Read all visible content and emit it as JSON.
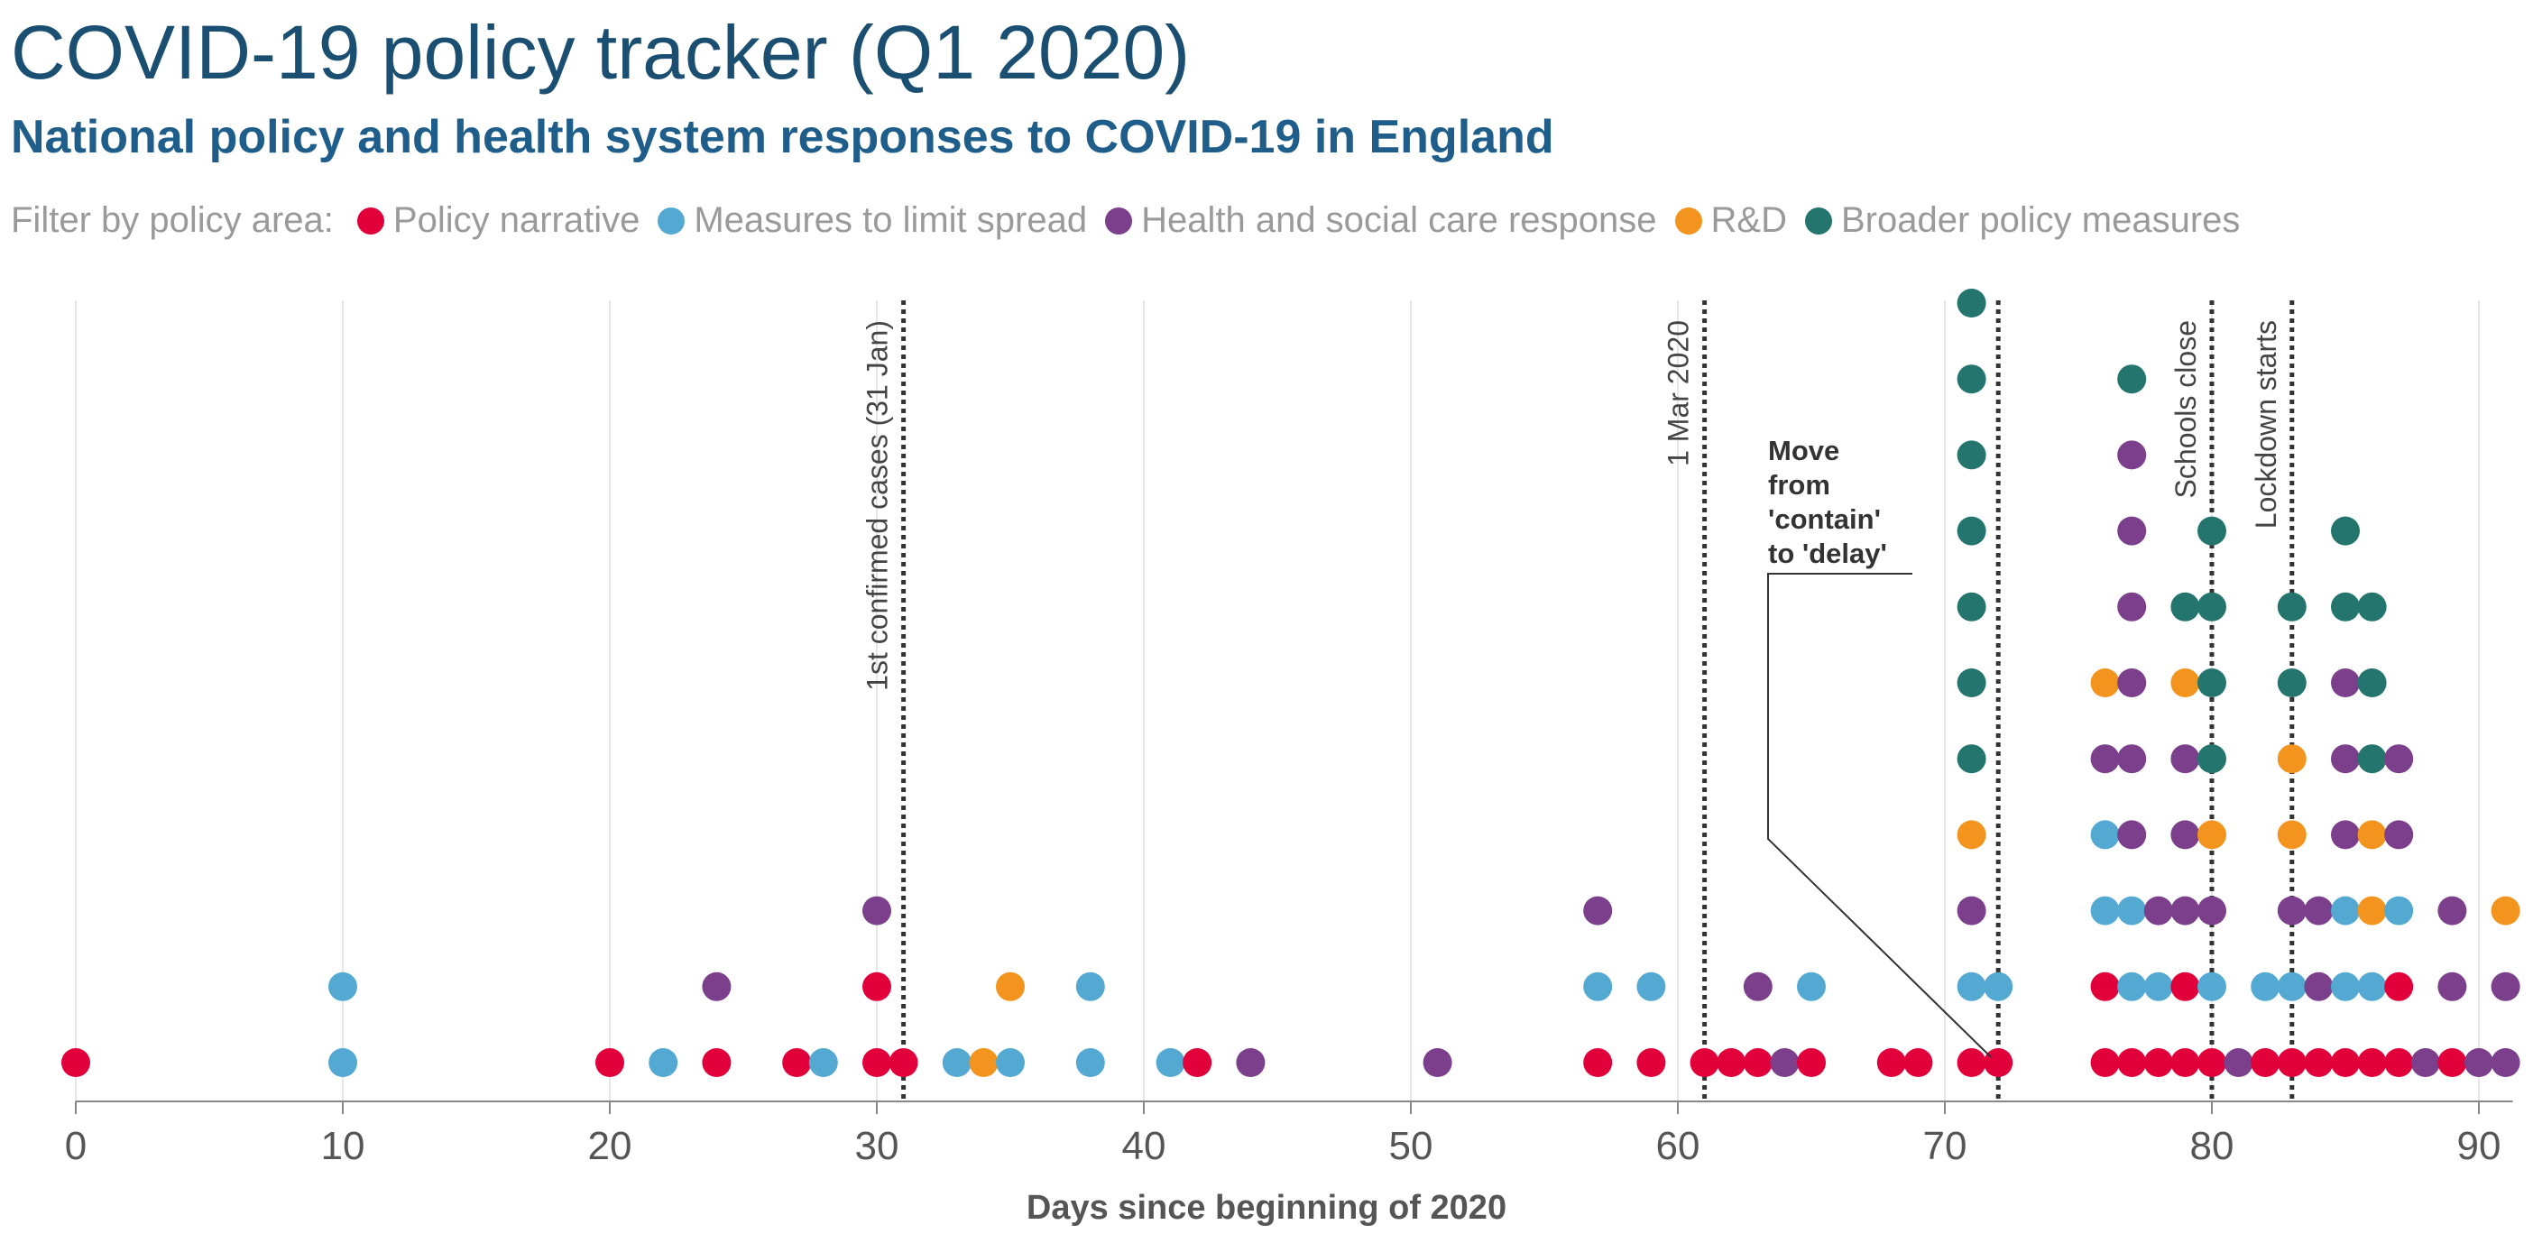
{
  "title": "COVID-19 policy tracker (Q1 2020)",
  "subtitle": "National policy and health system responses to COVID-19 in England",
  "legend": {
    "label": "Filter by policy area:",
    "items": [
      {
        "name": "Policy narrative",
        "color": "#e2003a"
      },
      {
        "name": "Measures to limit spread",
        "color": "#54a9d3"
      },
      {
        "name": "Health and social care response",
        "color": "#7b3f8b"
      },
      {
        "name": "R&D",
        "color": "#f2941d"
      },
      {
        "name": "Broader policy measures",
        "color": "#25756f"
      }
    ]
  },
  "chart_data": {
    "type": "scatter",
    "subtype": "stacked dot plot",
    "xlabel": "Days since beginning of 2020",
    "ylabel": "",
    "xlim": [
      0,
      91
    ],
    "xticks": [
      0,
      10,
      20,
      30,
      40,
      50,
      60,
      70,
      80,
      90
    ],
    "grid": "vertical",
    "legend_position": "top",
    "columns": [
      {
        "x": 0,
        "stack": [
          "Policy narrative"
        ]
      },
      {
        "x": 10,
        "stack": [
          "Measures to limit spread",
          "Measures to limit spread"
        ]
      },
      {
        "x": 20,
        "stack": [
          "Policy narrative"
        ]
      },
      {
        "x": 22,
        "stack": [
          "Measures to limit spread"
        ]
      },
      {
        "x": 24,
        "stack": [
          "Policy narrative",
          "Health and social care response"
        ]
      },
      {
        "x": 27,
        "stack": [
          "Policy narrative"
        ]
      },
      {
        "x": 28,
        "stack": [
          "Measures to limit spread"
        ]
      },
      {
        "x": 30,
        "stack": [
          "Policy narrative",
          "Policy narrative",
          "Health and social care response"
        ]
      },
      {
        "x": 31,
        "stack": [
          "Policy narrative"
        ]
      },
      {
        "x": 33,
        "stack": [
          "Measures to limit spread"
        ]
      },
      {
        "x": 34,
        "stack": [
          "R&D"
        ]
      },
      {
        "x": 35,
        "stack": [
          "Measures to limit spread",
          "R&D"
        ]
      },
      {
        "x": 38,
        "stack": [
          "Measures to limit spread",
          "Measures to limit spread"
        ]
      },
      {
        "x": 41,
        "stack": [
          "Measures to limit spread"
        ]
      },
      {
        "x": 42,
        "stack": [
          "Policy narrative"
        ]
      },
      {
        "x": 44,
        "stack": [
          "Health and social care response"
        ]
      },
      {
        "x": 51,
        "stack": [
          "Health and social care response"
        ]
      },
      {
        "x": 57,
        "stack": [
          "Policy narrative",
          "Measures to limit spread",
          "Health and social care response"
        ]
      },
      {
        "x": 59,
        "stack": [
          "Policy narrative",
          "Measures to limit spread"
        ]
      },
      {
        "x": 61,
        "stack": [
          "Policy narrative"
        ]
      },
      {
        "x": 62,
        "stack": [
          "Policy narrative"
        ]
      },
      {
        "x": 63,
        "stack": [
          "Policy narrative",
          "Health and social care response"
        ]
      },
      {
        "x": 64,
        "stack": [
          "Health and social care response"
        ]
      },
      {
        "x": 65,
        "stack": [
          "Policy narrative",
          "Measures to limit spread"
        ]
      },
      {
        "x": 68,
        "stack": [
          "Policy narrative"
        ]
      },
      {
        "x": 69,
        "stack": [
          "Policy narrative"
        ]
      },
      {
        "x": 71,
        "stack": [
          "Policy narrative",
          "Measures to limit spread",
          "Health and social care response",
          "R&D",
          "Broader policy measures",
          "Broader policy measures",
          "Broader policy measures",
          "Broader policy measures",
          "Broader policy measures",
          "Broader policy measures",
          "Broader policy measures"
        ]
      },
      {
        "x": 72,
        "stack": [
          "Policy narrative",
          "Measures to limit spread"
        ]
      },
      {
        "x": 76,
        "stack": [
          "Policy narrative",
          "Policy narrative",
          "Measures to limit spread",
          "Measures to limit spread",
          "Health and social care response",
          "R&D"
        ]
      },
      {
        "x": 77,
        "stack": [
          "Policy narrative",
          "Measures to limit spread",
          "Measures to limit spread",
          "Health and social care response",
          "Health and social care response",
          "Health and social care response",
          "Health and social care response",
          "Health and social care response",
          "Health and social care response",
          "Broader policy measures"
        ]
      },
      {
        "x": 78,
        "stack": [
          "Policy narrative",
          "Measures to limit spread",
          "Health and social care response"
        ]
      },
      {
        "x": 79,
        "stack": [
          "Policy narrative",
          "Policy narrative",
          "Health and social care response",
          "Health and social care response",
          "Health and social care response",
          "R&D",
          "Broader policy measures"
        ]
      },
      {
        "x": 80,
        "stack": [
          "Policy narrative",
          "Measures to limit spread",
          "Health and social care response",
          "R&D",
          "Broader policy measures",
          "Broader policy measures",
          "Broader policy measures",
          "Broader policy measures"
        ]
      },
      {
        "x": 81,
        "stack": [
          "Health and social care response"
        ]
      },
      {
        "x": 82,
        "stack": [
          "Policy narrative",
          "Measures to limit spread"
        ]
      },
      {
        "x": 83,
        "stack": [
          "Policy narrative",
          "Measures to limit spread",
          "Health and social care response",
          "R&D",
          "R&D",
          "Broader policy measures",
          "Broader policy measures"
        ]
      },
      {
        "x": 84,
        "stack": [
          "Policy narrative",
          "Health and social care response",
          "Health and social care response"
        ]
      },
      {
        "x": 85,
        "stack": [
          "Policy narrative",
          "Measures to limit spread",
          "Measures to limit spread",
          "Health and social care response",
          "Health and social care response",
          "Health and social care response",
          "Broader policy measures",
          "Broader policy measures"
        ]
      },
      {
        "x": 86,
        "stack": [
          "Policy narrative",
          "Measures to limit spread",
          "R&D",
          "R&D",
          "Broader policy measures",
          "Broader policy measures",
          "Broader policy measures"
        ]
      },
      {
        "x": 87,
        "stack": [
          "Policy narrative",
          "Policy narrative",
          "Measures to limit spread",
          "Health and social care response",
          "Health and social care response"
        ]
      },
      {
        "x": 88,
        "stack": [
          "Health and social care response"
        ]
      },
      {
        "x": 89,
        "stack": [
          "Policy narrative",
          "Health and social care response",
          "Health and social care response"
        ]
      },
      {
        "x": 90,
        "stack": [
          "Health and social care response"
        ]
      },
      {
        "x": 91,
        "stack": [
          "Health and social care response",
          "Health and social care response",
          "R&D"
        ]
      }
    ],
    "reference_lines": [
      {
        "x": 31,
        "label": "1st confirmed cases (31 Jan)"
      },
      {
        "x": 61,
        "label": "1 Mar 2020"
      },
      {
        "x": 72,
        "label": ""
      },
      {
        "x": 80,
        "label": "Schools close"
      },
      {
        "x": 83,
        "label": "Lockdown starts"
      }
    ],
    "annotations": [
      {
        "text": "Move from 'contain' to 'delay'",
        "lines": [
          "Move",
          "from",
          "'contain'",
          "to 'delay'"
        ],
        "points_to_x": 72
      }
    ]
  }
}
